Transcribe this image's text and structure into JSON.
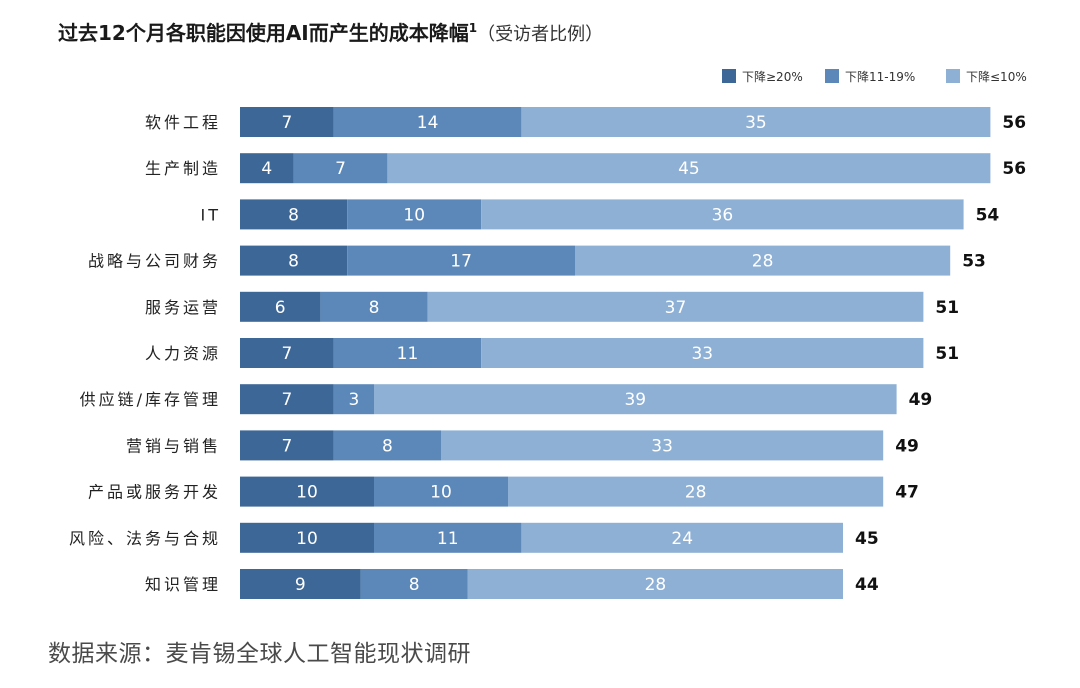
{
  "title_main": "过去12个月各职能因使用AI而产生的成本降幅",
  "title_sup": "1",
  "title_note": "（受访者比例）",
  "source": "数据来源：麦肯锡全球人工智能现状调研",
  "chart_data": {
    "type": "bar",
    "orientation": "horizontal",
    "stacked": true,
    "categories": [
      "软件工程",
      "生产制造",
      "IT",
      "战略与公司财务",
      "服务运营",
      "人力资源",
      "供应链/库存管理",
      "营销与销售",
      "产品或服务开发",
      "风险、法务与合规",
      "知识管理"
    ],
    "series": [
      {
        "name": "下降≥20%",
        "color": "#3d6797",
        "values": [
          7,
          4,
          8,
          8,
          6,
          7,
          7,
          7,
          10,
          10,
          9
        ]
      },
      {
        "name": "下降11-19%",
        "color": "#5b88b9",
        "values": [
          14,
          7,
          10,
          17,
          8,
          11,
          3,
          8,
          10,
          11,
          8
        ]
      },
      {
        "name": "下降≤10%",
        "color": "#8fb0d5",
        "values": [
          35,
          45,
          36,
          28,
          37,
          33,
          39,
          33,
          28,
          24,
          28
        ]
      }
    ],
    "totals": [
      56,
      56,
      54,
      53,
      51,
      51,
      49,
      49,
      47,
      45,
      44
    ],
    "legend_position": "top-right",
    "grid": false
  }
}
